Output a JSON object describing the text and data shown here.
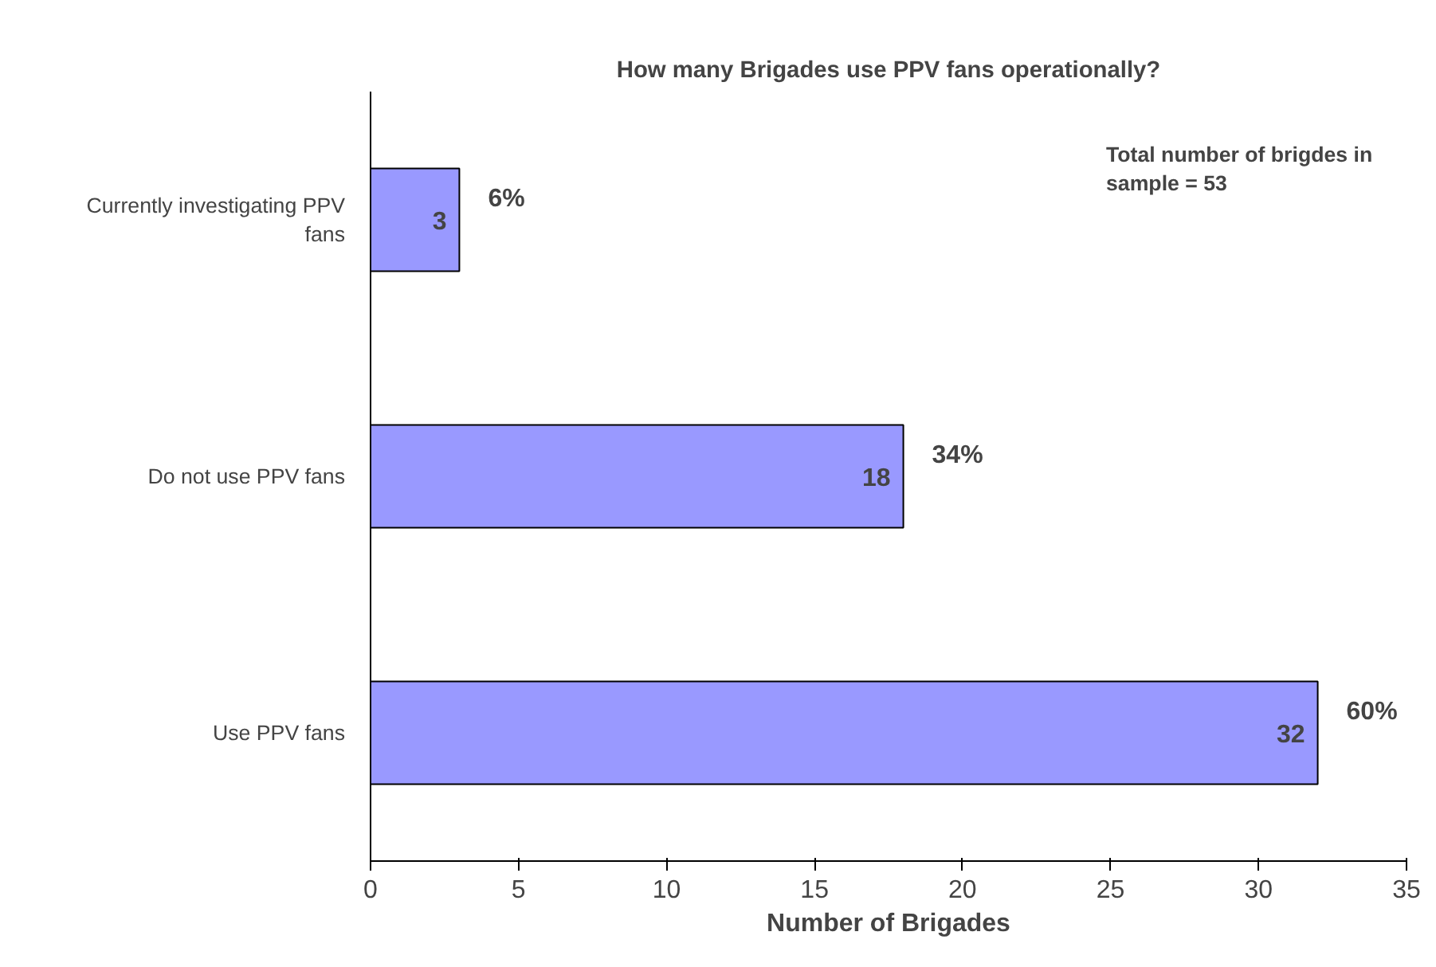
{
  "chart_data": {
    "type": "bar",
    "orientation": "horizontal",
    "title": "How many Brigades use PPV fans operationally?",
    "xlabel": "Number of Brigades",
    "categories": [
      "Currently investigating PPV fans",
      "Do not use PPV fans",
      "Use PPV fans"
    ],
    "values": [
      3,
      18,
      32
    ],
    "color": "#9999ff",
    "data_labels": true,
    "xlim": [
      0,
      35
    ],
    "xticks": [
      0,
      5,
      10,
      15,
      20,
      25,
      30,
      35
    ],
    "grid": false,
    "annotations": [
      "6%",
      "34%",
      "60%",
      "Total number of brigdes in sample = 53"
    ]
  }
}
